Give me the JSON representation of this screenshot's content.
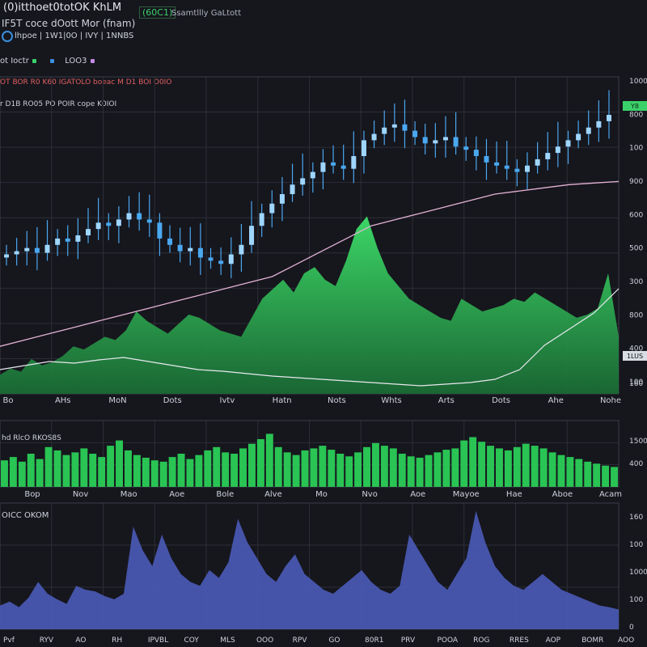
{
  "header": {
    "title": "(0)itthoet0totOK KhLM",
    "badge": "(60C1)",
    "subtitle": "Ssamtllly GaLtott",
    "line2": "IF5T coce dOott  Mor (fnam)",
    "account": "lhpoe  | 1W1|0O  | IVY | 1NNBS",
    "line2_extra": "",
    "legend": [
      {
        "label": "ot Ioctr",
        "color": "#3bd16a"
      },
      {
        "label": "",
        "color": "#3a8fe0"
      },
      {
        "label": "LOO3",
        "color": "#c48ae6"
      }
    ],
    "indicators": "OT BOR R0 K60 IGATOLO   boeac M D1  BOI O0IO",
    "indicators2": "r D1B RO05 PO POIR  cope K0IOI"
  },
  "axis_labels": {
    "main_x": [
      "Bo",
      "AHs",
      "MoN",
      "Dots",
      "Ivtv",
      "Hatn",
      "Nots",
      "Whts",
      "Arts",
      "Dots",
      "Ahe",
      "Nohe"
    ],
    "main_y": [
      "1000",
      "800",
      "100",
      "900",
      "600",
      "500",
      "300",
      "800",
      "400",
      "100"
    ],
    "main_y_last": "160",
    "vol_x": [
      "Bop",
      "Nov",
      "Mao",
      "Aoe",
      "Bole",
      "Alve",
      "Mo",
      "Nvo",
      "Aoe",
      "Mayoe",
      "Hae",
      "Aboe",
      "Acam"
    ],
    "vol_y": [
      "1500",
      "400"
    ],
    "vol_label": "hd RlcO   RKOS8S",
    "osc_label": "OICC OKOM",
    "osc_y": [
      "160",
      "100",
      "1000",
      "100",
      "0"
    ],
    "bottom_labels": [
      "Pvf",
      "RYV",
      "AO",
      "RH",
      "IPVBL",
      "COY",
      "MLS",
      "OOO",
      "RPV",
      "GO",
      "80R1",
      "PRV",
      "POOA",
      "ROG",
      "RRES",
      "AOP",
      "BOMR",
      "AOO"
    ]
  },
  "price_tags": [
    {
      "text": "Y8",
      "color": "#3bd16a"
    },
    {
      "text": "1LUS",
      "color": "#d8dce4"
    }
  ],
  "colors": {
    "bg": "#16161d",
    "grid": "#2c2e38",
    "candle": "#4aa8f0",
    "candle_glow": "#9fd6ff",
    "area": "#2fc65a",
    "ma": "#e3b2d4",
    "ma2": "#e8e8f0",
    "volume": "#29c454",
    "osc": "#4a5bb8"
  },
  "chart_data": [
    {
      "type": "line",
      "title": "",
      "description": "candlestick price series with moving average",
      "ylim": [
        0,
        1000
      ],
      "candles_close": [
        590,
        600,
        610,
        595,
        620,
        640,
        630,
        650,
        670,
        690,
        680,
        700,
        720,
        700,
        690,
        640,
        620,
        600,
        610,
        580,
        570,
        560,
        590,
        620,
        680,
        720,
        750,
        780,
        810,
        830,
        850,
        880,
        870,
        860,
        900,
        950,
        970,
        990,
        1000,
        980,
        960,
        940,
        950,
        960,
        930,
        920,
        900,
        880,
        870,
        860,
        850,
        870,
        890,
        910,
        930,
        950,
        970,
        990,
        1010,
        1030
      ],
      "ma_values": [
        300,
        320,
        340,
        360,
        380,
        400,
        420,
        440,
        460,
        480,
        500,
        520,
        560,
        600,
        640,
        680,
        700,
        720,
        740,
        760,
        780,
        790,
        800,
        810,
        815,
        820
      ]
    },
    {
      "type": "area",
      "description": "green area under price panel",
      "values": [
        60,
        80,
        70,
        110,
        90,
        100,
        120,
        150,
        140,
        160,
        180,
        170,
        200,
        260,
        230,
        210,
        190,
        220,
        250,
        240,
        220,
        200,
        190,
        180,
        240,
        300,
        330,
        360,
        320,
        380,
        400,
        360,
        340,
        420,
        520,
        560,
        460,
        380,
        340,
        300,
        280,
        260,
        240,
        230,
        300,
        280,
        260,
        270,
        280,
        300,
        290,
        320,
        300,
        280,
        260,
        240,
        250,
        270,
        380,
        180
      ]
    },
    {
      "type": "bar",
      "title": "",
      "description": "volume",
      "values": [
        40,
        45,
        38,
        50,
        42,
        60,
        55,
        48,
        52,
        58,
        50,
        45,
        62,
        70,
        55,
        48,
        44,
        40,
        38,
        45,
        50,
        42,
        48,
        55,
        60,
        52,
        50,
        58,
        65,
        72,
        80,
        60,
        52,
        48,
        55,
        58,
        62,
        56,
        50,
        46,
        52,
        60,
        66,
        62,
        58,
        50,
        46,
        44,
        48,
        52,
        56,
        58,
        70,
        75,
        68,
        62,
        58,
        55,
        60,
        65,
        62,
        58,
        52,
        48,
        45,
        42,
        38,
        35,
        32,
        30
      ],
      "ylim": [
        0,
        100
      ]
    },
    {
      "type": "area",
      "title": "",
      "description": "oscillator",
      "values": [
        30,
        35,
        28,
        40,
        60,
        45,
        38,
        32,
        55,
        50,
        48,
        42,
        38,
        45,
        130,
        100,
        80,
        120,
        90,
        70,
        60,
        55,
        75,
        65,
        85,
        140,
        110,
        90,
        70,
        60,
        80,
        95,
        70,
        60,
        50,
        45,
        55,
        65,
        75,
        60,
        50,
        45,
        55,
        120,
        100,
        80,
        60,
        50,
        70,
        90,
        150,
        110,
        80,
        65,
        55,
        50,
        60,
        70,
        60,
        50,
        45,
        40,
        35,
        30,
        28,
        25
      ],
      "ylim": [
        0,
        160
      ]
    }
  ]
}
